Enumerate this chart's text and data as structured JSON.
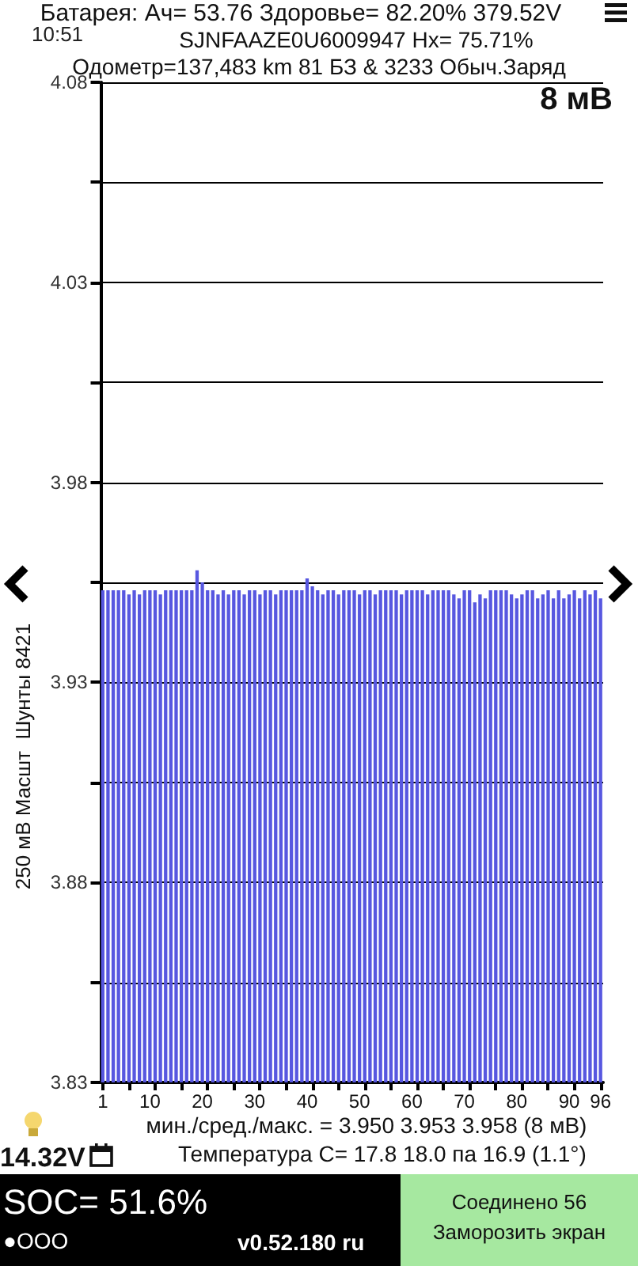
{
  "chart_data": {
    "type": "bar",
    "title": "Батарея:  Ач= 53.76  Здоровье= 82.20%  379.52V",
    "subtitle": "SJNFAAZE0U6009947  Нх= 75.71%",
    "ylabel": "250 мВ Масшт  Шунты 8421",
    "annotations": [
      "Одометр=137,483 km 81 БЗ & 3233 Обыч.Заряд",
      "10:51",
      "8 мВ",
      "мин./сред./макс. = 3.950 3.953 3.958  (8 мВ)",
      "14.32V",
      "Температура С= 17.8  18.0  па  16.9  (1.1°)",
      "SOC= 51.6%",
      "●OOO",
      "v0.52.180 ru",
      "Соединено 56",
      "Заморозить экран"
    ],
    "categories": [
      "1",
      null,
      null,
      null,
      null,
      null,
      null,
      null,
      null,
      "10",
      null,
      null,
      null,
      null,
      null,
      null,
      null,
      null,
      null,
      "20",
      null,
      null,
      null,
      null,
      null,
      null,
      null,
      null,
      null,
      "30",
      null,
      null,
      null,
      null,
      null,
      null,
      null,
      null,
      null,
      "40",
      null,
      null,
      null,
      null,
      null,
      null,
      null,
      null,
      null,
      "50",
      null,
      null,
      null,
      null,
      null,
      null,
      null,
      null,
      null,
      "60",
      null,
      null,
      null,
      null,
      null,
      null,
      null,
      null,
      null,
      "70",
      null,
      null,
      null,
      null,
      null,
      null,
      null,
      null,
      null,
      "80",
      null,
      null,
      null,
      null,
      null,
      null,
      null,
      null,
      null,
      "90",
      null,
      null,
      null,
      null,
      null,
      "96"
    ],
    "values": [
      3.953,
      3.953,
      3.953,
      3.953,
      3.953,
      3.952,
      3.953,
      3.952,
      3.953,
      3.953,
      3.953,
      3.952,
      3.953,
      3.953,
      3.953,
      3.953,
      3.953,
      3.953,
      3.958,
      3.955,
      3.953,
      3.953,
      3.952,
      3.953,
      3.952,
      3.953,
      3.953,
      3.952,
      3.953,
      3.953,
      3.952,
      3.953,
      3.953,
      3.952,
      3.953,
      3.953,
      3.953,
      3.953,
      3.953,
      3.956,
      3.954,
      3.953,
      3.952,
      3.953,
      3.953,
      3.952,
      3.953,
      3.953,
      3.953,
      3.952,
      3.953,
      3.953,
      3.952,
      3.953,
      3.953,
      3.953,
      3.953,
      3.952,
      3.953,
      3.953,
      3.953,
      3.953,
      3.952,
      3.953,
      3.953,
      3.953,
      3.953,
      3.952,
      3.951,
      3.953,
      3.953,
      3.95,
      3.952,
      3.951,
      3.953,
      3.953,
      3.953,
      3.953,
      3.952,
      3.951,
      3.952,
      3.953,
      3.953,
      3.951,
      3.952,
      3.953,
      3.951,
      3.953,
      3.951,
      3.952,
      3.953,
      3.951,
      3.953,
      3.952,
      3.953,
      3.951
    ],
    "color": "#5757e0",
    "ylim": [
      3.83,
      4.08
    ],
    "yticks": [
      3.83,
      {
        "value": 3.855,
        "label": null
      },
      3.88,
      {
        "value": 3.905,
        "label": null
      },
      3.93,
      {
        "value": 3.955,
        "label": null
      },
      3.98,
      {
        "value": 4.005,
        "label": null
      },
      4.03,
      {
        "value": 4.055,
        "label": null
      },
      4.08
    ],
    "grid": "y"
  }
}
